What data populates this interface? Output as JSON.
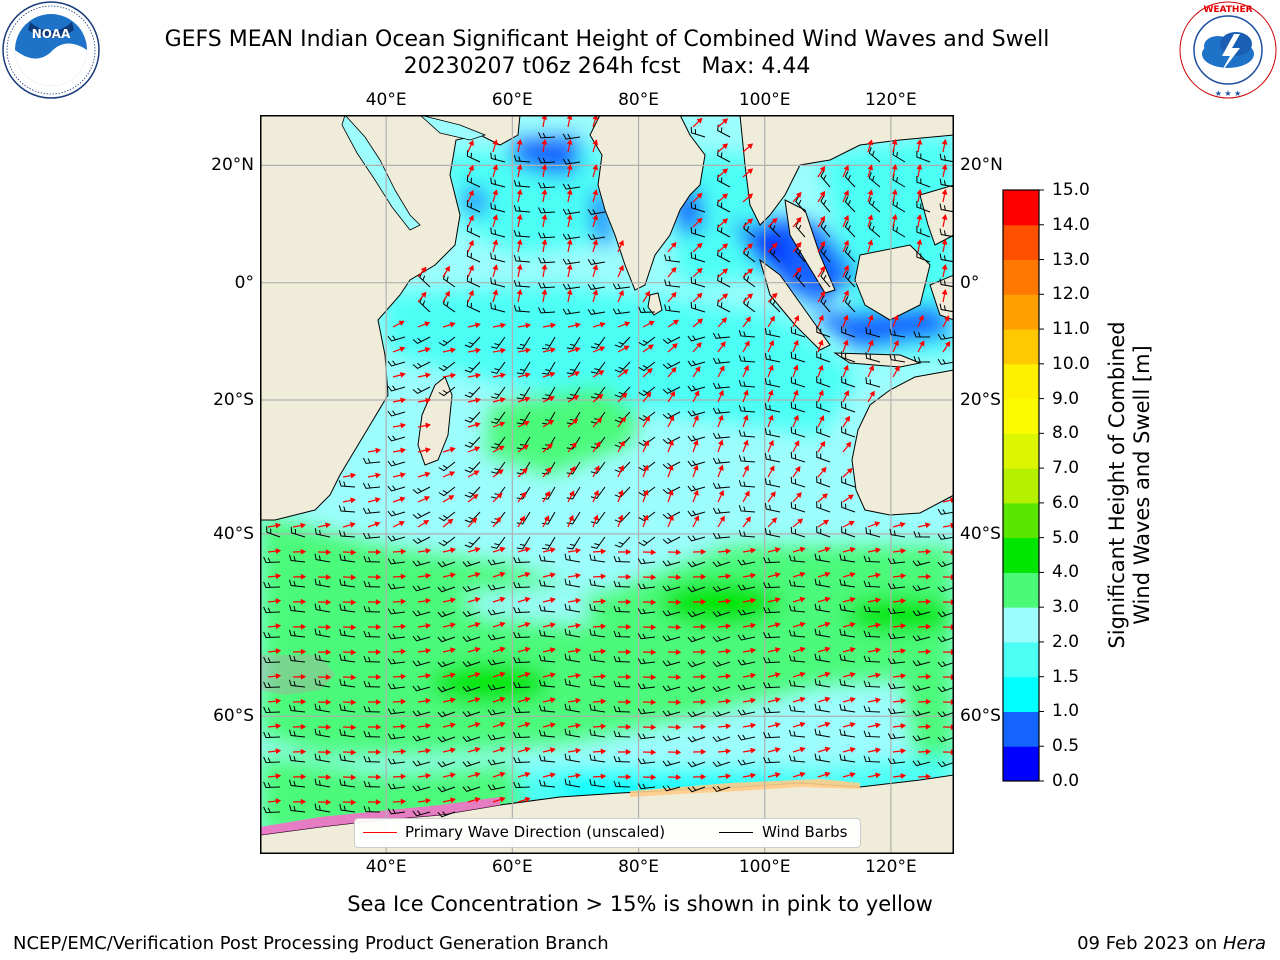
{
  "title": {
    "line1": "GEFS MEAN Indian Ocean Significant Height of Combined Wind Waves and Swell",
    "line2": "20230207 t06z 264h fcst   Max: 4.44"
  },
  "logos": {
    "left": {
      "name": "NOAA",
      "ring_text": "NATIONAL OCEANIC AND ATMOSPHERIC ADMINISTRATION",
      "bottom_text": "U.S. DEPARTMENT OF COMMERCE"
    },
    "right": {
      "name": "NATIONAL WEATHER SERVICE"
    }
  },
  "map": {
    "lon_range": [
      20,
      130
    ],
    "lat_range": [
      -70,
      28
    ],
    "lon_ticks": [
      "40°E",
      "60°E",
      "80°E",
      "100°E",
      "120°E"
    ],
    "lon_values": [
      40,
      60,
      80,
      100,
      120
    ],
    "lat_ticks": [
      "20°N",
      "0°",
      "20°S",
      "40°S",
      "60°S"
    ],
    "lat_values": [
      20,
      0,
      -20,
      -40,
      -60
    ],
    "grid": true,
    "land_color": "#efecda",
    "vector_colors": {
      "wave_direction": "#ff0000",
      "wind_barbs": "#000000"
    }
  },
  "legend": {
    "placement": "bottom-center",
    "primary_wave": "Primary Wave Direction (unscaled)",
    "wind_barbs": "Wind Barbs"
  },
  "colorbar": {
    "title_line1": "Significant Height of Combined",
    "title_line2": "Wind Waves and Swell [m]",
    "levels": [
      "0.0",
      "0.5",
      "1.0",
      "1.5",
      "2.0",
      "3.0",
      "4.0",
      "5.0",
      "6.0",
      "7.0",
      "8.0",
      "9.0",
      "10.0",
      "11.0",
      "12.0",
      "13.0",
      "14.0",
      "15.0"
    ],
    "colors": [
      "#0000ff",
      "#1464ff",
      "#00ffff",
      "#4cfff5",
      "#9cfdfc",
      "#4cfa7a",
      "#00e600",
      "#5ae600",
      "#b4f000",
      "#dcf500",
      "#fafa00",
      "#fff000",
      "#ffc800",
      "#ffa000",
      "#ff7800",
      "#ff5000",
      "#ff0000"
    ]
  },
  "footer": {
    "note": "Sea Ice Concentration > 15% is shown in pink to yellow",
    "left": "NCEP/EMC/Verification Post Processing Product Generation Branch",
    "right_date": "09 Feb 2023 on ",
    "right_host": "Hera"
  }
}
